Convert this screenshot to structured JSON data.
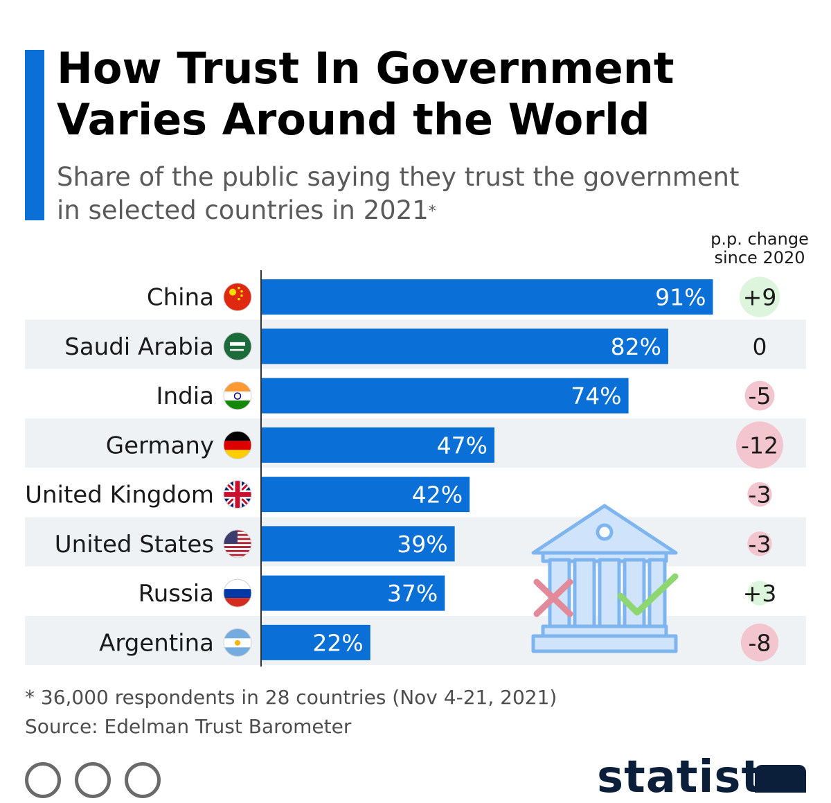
{
  "header": {
    "title_line1": "How Trust In Government",
    "title_line2": "Varies Around the World",
    "subtitle_line1": "Share of the public saying they trust the government",
    "subtitle_line2": "in selected countries in 2021",
    "subtitle_asterisk": "*",
    "change_header_line1": "p.p. change",
    "change_header_line2": "since 2020"
  },
  "footer": {
    "footnote": "* 36,000 respondents in 28 countries (Nov 4-21, 2021)",
    "source": "Source: Edelman Trust Barometer",
    "brand": "statista"
  },
  "colors": {
    "bar": "#0a6fd6",
    "row_shade": "#eff2f5",
    "positive_bubble": "#dcf5dc",
    "negative_bubble": "#f3c6cf",
    "illustration": "#7fb5ef"
  },
  "chart_data": {
    "type": "bar",
    "orientation": "horizontal",
    "title": "How Trust In Government Varies Around the World",
    "subtitle": "Share of the public saying they trust the government in selected countries in 2021*",
    "categories": [
      "China",
      "Saudi Arabia",
      "India",
      "Germany",
      "United Kingdom",
      "United States",
      "Russia",
      "Argentina"
    ],
    "values": [
      91,
      82,
      74,
      47,
      42,
      39,
      37,
      22
    ],
    "value_labels": [
      "91%",
      "82%",
      "74%",
      "47%",
      "42%",
      "39%",
      "37%",
      "22%"
    ],
    "unit": "%",
    "xlim": [
      0,
      100
    ],
    "change_since_2020": [
      9,
      0,
      -5,
      -12,
      -3,
      -3,
      3,
      -8
    ],
    "change_labels": [
      "+9",
      "0",
      "-5",
      "-12",
      "-3",
      "-3",
      "+3",
      "-8"
    ],
    "flags": [
      "china-flag",
      "saudi-arabia-flag",
      "india-flag",
      "germany-flag",
      "united-kingdom-flag",
      "united-states-flag",
      "russia-flag",
      "argentina-flag"
    ]
  }
}
